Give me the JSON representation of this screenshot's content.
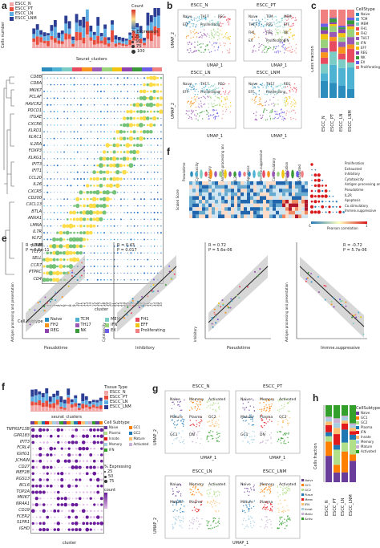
{
  "panel_labels": [
    "a",
    "b",
    "c",
    "d",
    "e",
    "f",
    "g",
    "h"
  ],
  "colors": {
    "ESCC_N": "#f2a6a6",
    "ESCC_PT": "#e74c3c",
    "ESCC_LN": "#5dade2",
    "ESCC_LNM": "#2c3e94",
    "Naive": "#2b8cbe",
    "TCM": "#4eb3d3",
    "MEM": "#7bccc4",
    "FH1": "#e84a5f",
    "FH2": "#f7941d",
    "TH17": "#9b59b6",
    "IFN": "#9ad27b",
    "EFF": "#f1c40f",
    "REG": "#8e44ad",
    "NK": "#3a9a3a",
    "EX": "#6c5ce7",
    "Proliferating": "#f08080"
  },
  "panel_a": {
    "legend_tissue": [
      "ESCC_N",
      "ESCC_PT",
      "ESCC_LN",
      "ESCC_LNM"
    ],
    "ylabel": "Cells number",
    "xlabel": "Seurat_clusters",
    "count_label": "Count",
    "expr_label": "% Expression",
    "expr_levels": [
      "25",
      "50",
      "75",
      "100"
    ],
    "genes": [
      "CD8B",
      "CD8A",
      "MKI67",
      "PCLAF",
      "HAVCR2",
      "PDCD1",
      "ITGAE",
      "CXCR6",
      "KLRD1",
      "KLRC1",
      "IL2RA",
      "FOXP3",
      "KLRG1",
      "IFIT3",
      "IFIT1",
      "CCL20",
      "IL26",
      "CXCR5",
      "CD200",
      "CXCL13",
      "BTLA",
      "ANXA1",
      "LMNA",
      "IL7R",
      "KLF2",
      "JUNB",
      "TCF7",
      "SELL",
      "CCR7",
      "PTPRC",
      "CD4"
    ],
    "cluster_label": "cluster",
    "subtype_title": "Cell Subtype",
    "subtypes": [
      "Naive",
      "TCM",
      "MEM",
      "FH1",
      "FH2",
      "TH17",
      "IFN",
      "EFF",
      "REG",
      "NK",
      "EX",
      "Proliferating"
    ]
  },
  "panel_b": {
    "titles": [
      "ESCC_N",
      "ESCC_PT",
      "ESCC_LN",
      "ESCC_LNM"
    ],
    "xlabel": "UMAP_1",
    "ylabel": "UMAP_2",
    "cluster_labels": [
      "Naive",
      "TCM",
      "MEM",
      "TH17",
      "REG",
      "EFF",
      "FH1",
      "FH2",
      "NK",
      "EX",
      "Proliferating",
      "IFN"
    ],
    "ticks": [
      "-10",
      "-5",
      "0",
      "5",
      "10"
    ]
  },
  "panel_c": {
    "ylabel": "Cells fraction",
    "legend_title": "CellStype",
    "categories": [
      "ESCC_N",
      "ESCC_PT",
      "ESCC_LN",
      "ESCC_LNM"
    ],
    "legend": [
      "Naive",
      "TCM",
      "MEM",
      "FH1",
      "FH2",
      "TH17",
      "IFN",
      "EFF",
      "REG",
      "NK",
      "EX",
      "Proliferating"
    ]
  },
  "panel_d": {
    "top_labels": [
      "Pseudotime",
      "Cytotoxicity",
      "Inhibitory",
      "Antigen processing and presentation",
      "IL2R",
      "Apoptosis",
      "Immne.suppressive",
      "Co.stimulatory",
      "Proliferation",
      "Exhausted"
    ],
    "heat_label": "Scaled Score",
    "row_labels": [
      "Proliferation",
      "Exhausted",
      "Inhibitory",
      "Cytotoxicity",
      "Antigen processing and presentation",
      "Pseudotime",
      "IL2R",
      "Apoptosis",
      "Co.stimulatory",
      "Immne.suppressive"
    ],
    "colorbar_title": "Pearson correlation",
    "colorbar_ticks": [
      "-1",
      "1"
    ]
  },
  "panel_e": {
    "plots": [
      {
        "r": "R = 0.88",
        "p": "P = 6.6e-11",
        "xlabel": "Pseudotime",
        "ylabel": "Antigen processing and presentation"
      },
      {
        "r": "R = 0.43",
        "p": "P = 0.017",
        "xlabel": "Inhibitory",
        "ylabel": "Cytotoxicity"
      },
      {
        "r": "R = 0.72",
        "p": "P = 5.6e-06",
        "xlabel": "Pseudotime",
        "ylabel": "Inhibitory"
      },
      {
        "r": "R = -0.72",
        "p": "P = 5.7e-06",
        "xlabel": "Immne.suppressive",
        "ylabel": "Antigen processing and presentation"
      }
    ]
  },
  "panel_f": {
    "legend_title": "Tissue Type",
    "legend": [
      "ESCC_N",
      "ESCC_PT",
      "ESCC_LN",
      "ESCC_LNM"
    ],
    "xlabel": "seurat_clusters",
    "genes": [
      "TNFRSF13B",
      "GPR183",
      "IFIT3",
      "FCRL4",
      "IGHG1",
      "JCHAIN",
      "CD27",
      "MEF2B",
      "RGS13",
      "BCL6",
      "TOP2A",
      "MKI67",
      "NR4A1",
      "CD19",
      "FCER2",
      "S1PR1",
      "IGHD"
    ],
    "subtype_title": "Cell Subtype",
    "subtypes": [
      "Naive",
      "GC1",
      "Plasma",
      "GC2",
      "Innate",
      "Mature",
      "Memory",
      "Activated",
      "IFN"
    ],
    "expr_title": "% Expressing",
    "expr_levels": [
      "25",
      "50",
      "75"
    ],
    "count_title": "count",
    "cluster_label": "cluster"
  },
  "panel_g": {
    "titles": [
      "ESCC_N",
      "ESCC_PT",
      "ESCC_LN",
      "ESCC_LNM"
    ],
    "xlabel": "UMAP_1",
    "ylabel": "UMAP_2",
    "labels": [
      "Naive",
      "Memory",
      "Activated",
      "Mature",
      "Plasma",
      "GC2",
      "GC1",
      "IFN",
      "DN",
      "Innate"
    ],
    "legend": [
      "Naive",
      "GC1",
      "GC2",
      "Plasma",
      "Memory",
      "IFN",
      "Innate",
      "Mature",
      "Activated"
    ]
  },
  "panel_h": {
    "ylabel": "Cells fraction",
    "categories": [
      "ESCC_N",
      "ESCC_PT",
      "ESCC_LN",
      "ESCC_LNM"
    ],
    "legend_title": "CellSubtype",
    "legend": [
      "Naive",
      "GC1",
      "GC2",
      "Plasma",
      "IFN",
      "Innate",
      "Memory",
      "Mature",
      "Activated"
    ]
  }
}
